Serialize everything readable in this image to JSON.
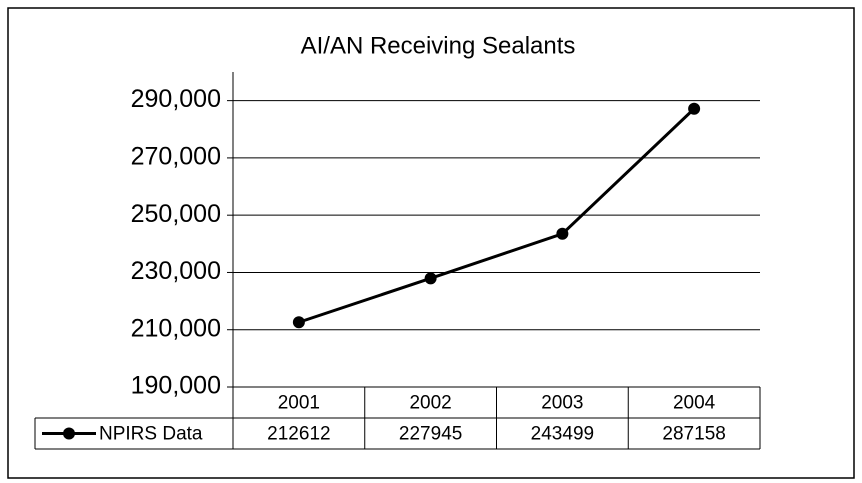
{
  "chart_data": {
    "type": "line",
    "title": "AI/AN Receiving Sealants",
    "categories": [
      "2001",
      "2002",
      "2003",
      "2004"
    ],
    "series": [
      {
        "name": "NPIRS Data",
        "color": "#000000",
        "values": [
          212612,
          227945,
          243499,
          287158
        ]
      }
    ],
    "ylim": [
      190000,
      300000
    ],
    "yticks": [
      {
        "value": 190000,
        "label": "190,000"
      },
      {
        "value": 210000,
        "label": "210,000"
      },
      {
        "value": 230000,
        "label": "230,000"
      },
      {
        "value": 250000,
        "label": "250,000"
      },
      {
        "value": 270000,
        "label": "270,000"
      },
      {
        "value": 290000,
        "label": "290,000"
      }
    ],
    "grid": true,
    "data_table": true
  }
}
